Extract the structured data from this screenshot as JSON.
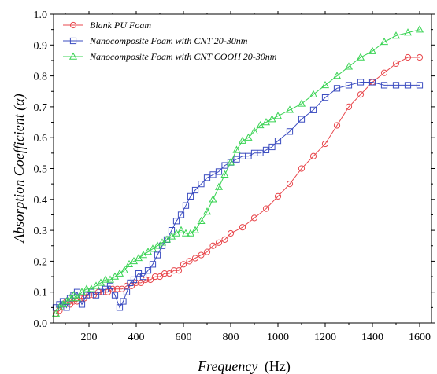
{
  "chart_data": {
    "type": "line",
    "xlabel": "Frequency",
    "xlabel_unit": "(Hz)",
    "ylabel": "Absorption Coefficient (α)",
    "xlim": [
      50,
      1650
    ],
    "ylim": [
      0.0,
      1.0
    ],
    "x_ticks": [
      200,
      400,
      600,
      800,
      1000,
      1200,
      1400,
      1600
    ],
    "x_tick_labels": [
      "200",
      "400",
      "600",
      "800",
      "1000",
      "1200",
      "1400",
      "1600"
    ],
    "y_ticks": [
      0.0,
      0.1,
      0.2,
      0.3,
      0.4,
      0.5,
      0.6,
      0.7,
      0.8,
      0.9,
      1.0
    ],
    "y_tick_labels": [
      "0.0",
      "0.1",
      "0.2",
      "0.3",
      "0.4",
      "0.5",
      "0.6",
      "0.7",
      "0.8",
      "0.9",
      "1.0"
    ],
    "grid": false,
    "legend_position": "top-left",
    "series": [
      {
        "name": "Blank PU Foam",
        "color": "#e8474c",
        "marker": "circle",
        "x": [
          60,
          75,
          90,
          105,
          120,
          135,
          150,
          165,
          180,
          200,
          220,
          240,
          260,
          280,
          300,
          320,
          340,
          360,
          380,
          400,
          420,
          440,
          460,
          480,
          500,
          520,
          540,
          560,
          580,
          600,
          625,
          650,
          675,
          700,
          725,
          750,
          775,
          800,
          850,
          900,
          950,
          1000,
          1050,
          1100,
          1150,
          1200,
          1250,
          1300,
          1350,
          1400,
          1450,
          1500,
          1550,
          1600
        ],
        "y": [
          0.03,
          0.04,
          0.06,
          0.07,
          0.06,
          0.07,
          0.07,
          0.08,
          0.08,
          0.09,
          0.09,
          0.1,
          0.1,
          0.1,
          0.11,
          0.11,
          0.11,
          0.12,
          0.12,
          0.13,
          0.13,
          0.14,
          0.14,
          0.15,
          0.15,
          0.16,
          0.16,
          0.17,
          0.17,
          0.19,
          0.2,
          0.21,
          0.22,
          0.23,
          0.25,
          0.26,
          0.27,
          0.29,
          0.31,
          0.34,
          0.37,
          0.41,
          0.45,
          0.5,
          0.54,
          0.58,
          0.64,
          0.7,
          0.74,
          0.78,
          0.81,
          0.84,
          0.86,
          0.86
        ]
      },
      {
        "name": "Nanocomposite Foam with CNT 20-30nm",
        "color": "#3b4cc0",
        "marker": "square",
        "x": [
          60,
          75,
          90,
          105,
          120,
          135,
          150,
          170,
          190,
          210,
          230,
          250,
          270,
          290,
          310,
          330,
          345,
          360,
          375,
          390,
          410,
          430,
          450,
          470,
          490,
          510,
          530,
          550,
          570,
          590,
          610,
          630,
          650,
          675,
          700,
          725,
          750,
          775,
          800,
          825,
          850,
          875,
          900,
          925,
          950,
          975,
          1000,
          1050,
          1100,
          1150,
          1200,
          1250,
          1300,
          1350,
          1400,
          1450,
          1500,
          1550,
          1600
        ],
        "y": [
          0.05,
          0.06,
          0.07,
          0.05,
          0.08,
          0.09,
          0.1,
          0.06,
          0.09,
          0.1,
          0.09,
          0.1,
          0.11,
          0.12,
          0.09,
          0.05,
          0.07,
          0.1,
          0.13,
          0.14,
          0.16,
          0.15,
          0.17,
          0.19,
          0.22,
          0.25,
          0.27,
          0.3,
          0.33,
          0.35,
          0.38,
          0.41,
          0.43,
          0.45,
          0.47,
          0.48,
          0.49,
          0.51,
          0.52,
          0.53,
          0.54,
          0.54,
          0.55,
          0.55,
          0.56,
          0.57,
          0.59,
          0.62,
          0.66,
          0.69,
          0.73,
          0.76,
          0.77,
          0.78,
          0.78,
          0.77,
          0.77,
          0.77,
          0.77
        ]
      },
      {
        "name": "Nanocomposite Foam with CNT COOH 20-30nm",
        "color": "#39d353",
        "marker": "triangle",
        "x": [
          60,
          75,
          90,
          105,
          120,
          135,
          150,
          170,
          190,
          210,
          230,
          250,
          270,
          290,
          310,
          330,
          350,
          370,
          390,
          410,
          430,
          450,
          470,
          490,
          510,
          530,
          550,
          570,
          590,
          610,
          630,
          650,
          675,
          700,
          725,
          750,
          775,
          800,
          825,
          850,
          875,
          900,
          925,
          950,
          975,
          1000,
          1050,
          1100,
          1150,
          1200,
          1250,
          1300,
          1350,
          1400,
          1450,
          1500,
          1550,
          1600
        ],
        "y": [
          0.03,
          0.05,
          0.06,
          0.07,
          0.08,
          0.09,
          0.08,
          0.1,
          0.11,
          0.11,
          0.12,
          0.13,
          0.14,
          0.14,
          0.15,
          0.16,
          0.17,
          0.19,
          0.2,
          0.21,
          0.22,
          0.23,
          0.24,
          0.25,
          0.26,
          0.27,
          0.28,
          0.29,
          0.3,
          0.29,
          0.29,
          0.3,
          0.33,
          0.36,
          0.4,
          0.44,
          0.48,
          0.52,
          0.56,
          0.59,
          0.6,
          0.62,
          0.64,
          0.65,
          0.66,
          0.67,
          0.69,
          0.71,
          0.74,
          0.77,
          0.8,
          0.83,
          0.86,
          0.88,
          0.91,
          0.93,
          0.94,
          0.95
        ]
      }
    ]
  }
}
